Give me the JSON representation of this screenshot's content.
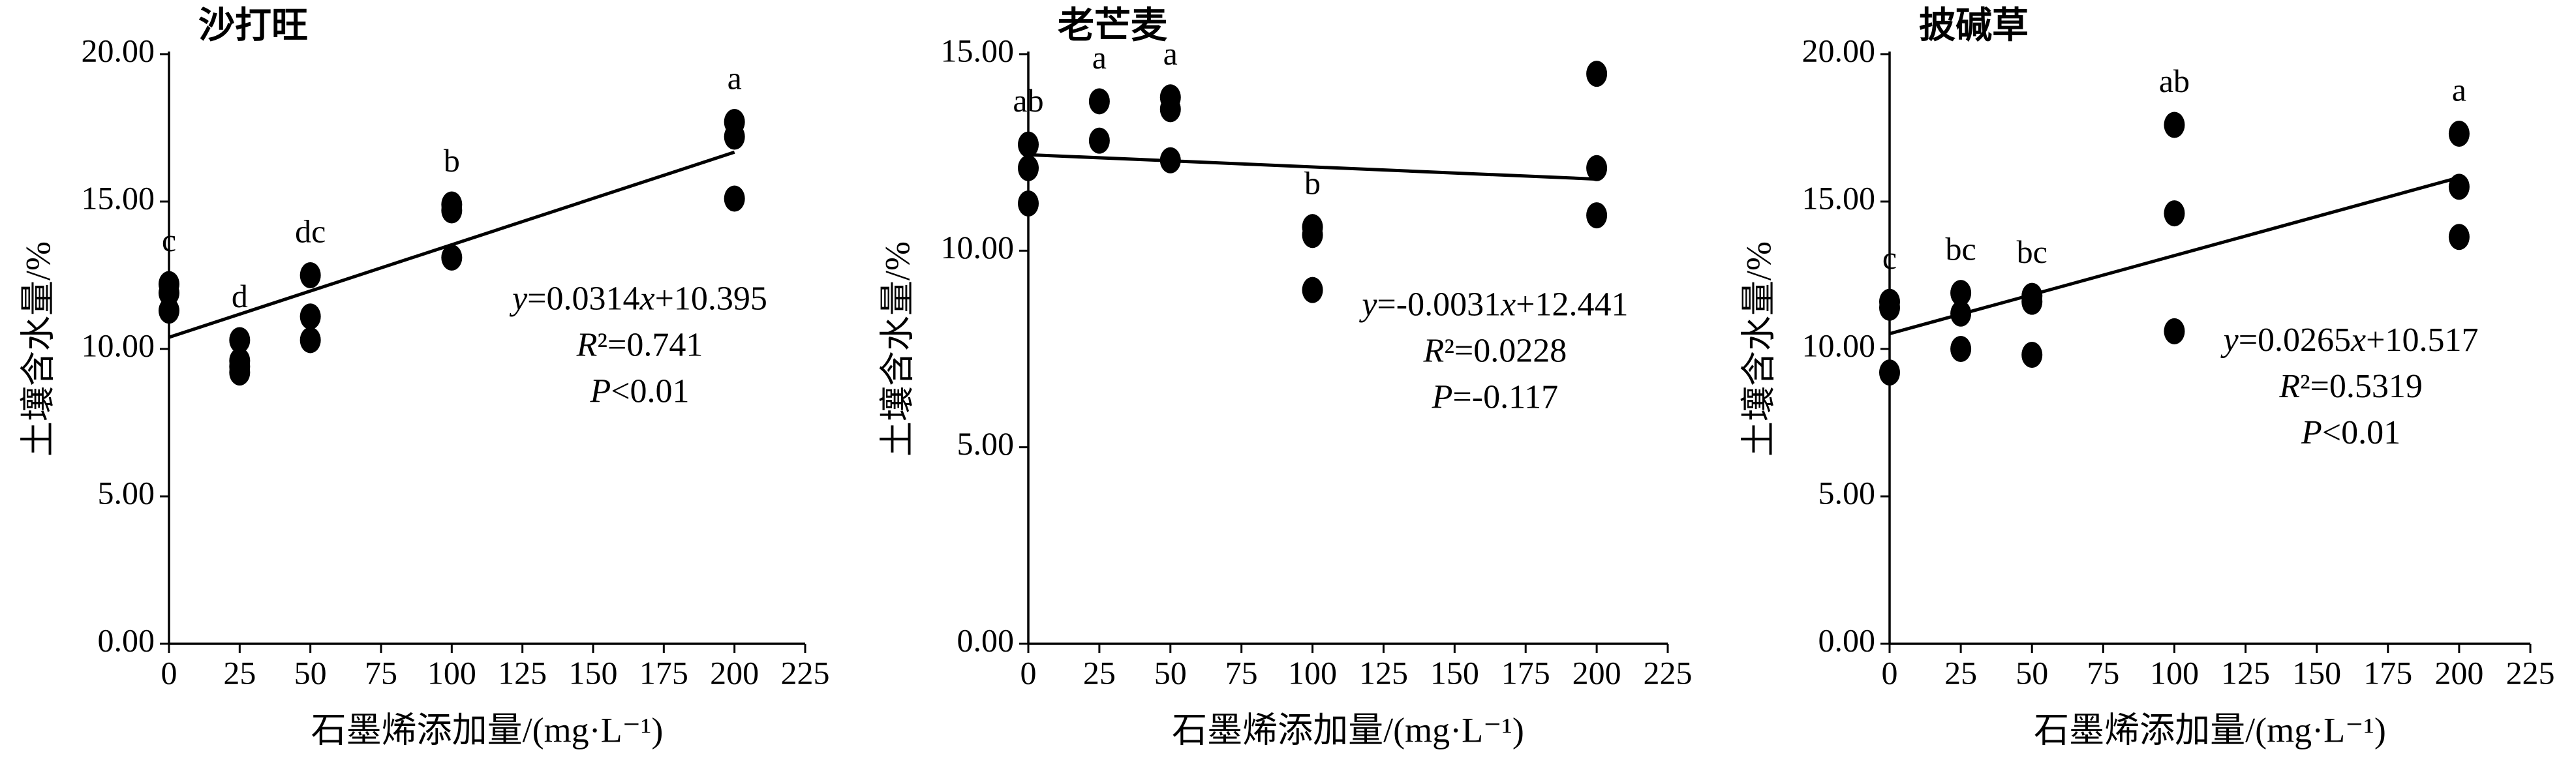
{
  "chart_data": [
    {
      "type": "scatter",
      "title": "沙打旺",
      "xlabel": "石墨烯添加量/(mg·L⁻¹)",
      "ylabel": "土壤含水量/%",
      "color": "#000000",
      "x": [
        0,
        0,
        0,
        25,
        25,
        25,
        25,
        50,
        50,
        50,
        100,
        100,
        100,
        200,
        200,
        200
      ],
      "y": [
        12.2,
        11.9,
        11.3,
        10.3,
        9.6,
        9.4,
        9.2,
        12.5,
        11.1,
        10.3,
        14.9,
        14.7,
        13.1,
        17.7,
        17.2,
        15.1
      ],
      "xlim": [
        0,
        225
      ],
      "xticks": [
        0,
        25,
        50,
        75,
        100,
        125,
        150,
        175,
        200,
        225
      ],
      "ylim": [
        0,
        20
      ],
      "yticks": [
        {
          "value": 0,
          "label": "0.00"
        },
        {
          "value": 5,
          "label": "5.00"
        },
        {
          "value": 10,
          "label": "10.00"
        },
        {
          "value": 15,
          "label": "15.00"
        },
        {
          "value": 20,
          "label": "20.00"
        }
      ],
      "group_x": [
        0,
        25,
        50,
        100,
        200
      ],
      "group_labels": [
        "c",
        "d",
        "dc",
        "b",
        "a"
      ],
      "fit": {
        "slope": 0.0314,
        "intercept": 10.395
      },
      "annotations": [
        "y=0.0314x+10.395",
        "R²=0.741",
        "P<0.01"
      ]
    },
    {
      "type": "scatter",
      "title": "老芒麦",
      "xlabel": "石墨烯添加量/(mg·L⁻¹)",
      "ylabel": "土壤含水量/%",
      "color": "#000000",
      "x": [
        0,
        0,
        0,
        25,
        25,
        50,
        50,
        50,
        100,
        100,
        100,
        200,
        200,
        200
      ],
      "y": [
        12.7,
        12.1,
        11.2,
        13.8,
        12.8,
        13.9,
        13.6,
        12.3,
        10.6,
        10.4,
        9.0,
        14.5,
        12.1,
        10.9
      ],
      "xlim": [
        0,
        225
      ],
      "xticks": [
        0,
        25,
        50,
        75,
        100,
        125,
        150,
        175,
        200,
        225
      ],
      "ylim": [
        0,
        15
      ],
      "yticks": [
        {
          "value": 0,
          "label": "0.00"
        },
        {
          "value": 5,
          "label": "5.00"
        },
        {
          "value": 10,
          "label": "10.00"
        },
        {
          "value": 15,
          "label": "15.00"
        }
      ],
      "group_x": [
        0,
        25,
        50,
        100
      ],
      "group_labels": [
        "ab",
        "a",
        "a",
        "b"
      ],
      "fit": {
        "slope": -0.0031,
        "intercept": 12.441
      },
      "annotations": [
        "y=-0.0031x+12.441",
        "R²=0.0228",
        "P=-0.117"
      ]
    },
    {
      "type": "scatter",
      "title": "披碱草",
      "xlabel": "石墨烯添加量/(mg·L⁻¹)",
      "ylabel": "土壤含水量/%",
      "color": "#000000",
      "x": [
        0,
        0,
        0,
        25,
        25,
        25,
        50,
        50,
        50,
        100,
        100,
        100,
        200,
        200,
        200
      ],
      "y": [
        11.6,
        11.4,
        9.2,
        11.9,
        11.2,
        10.0,
        11.8,
        11.6,
        9.8,
        17.6,
        14.6,
        10.6,
        17.3,
        15.5,
        13.8
      ],
      "xlim": [
        0,
        225
      ],
      "xticks": [
        0,
        25,
        50,
        75,
        100,
        125,
        150,
        175,
        200,
        225
      ],
      "ylim": [
        0,
        20
      ],
      "yticks": [
        {
          "value": 0,
          "label": "0.00"
        },
        {
          "value": 5,
          "label": "5.00"
        },
        {
          "value": 10,
          "label": "10.00"
        },
        {
          "value": 15,
          "label": "15.00"
        },
        {
          "value": 20,
          "label": "20.00"
        }
      ],
      "group_x": [
        0,
        25,
        50,
        100,
        200
      ],
      "group_labels": [
        "c",
        "bc",
        "bc",
        "ab",
        "a"
      ],
      "fit": {
        "slope": 0.0265,
        "intercept": 10.517
      },
      "annotations": [
        "y=0.0265x+10.517",
        "R²=0.5319",
        "P<0.01"
      ]
    }
  ]
}
